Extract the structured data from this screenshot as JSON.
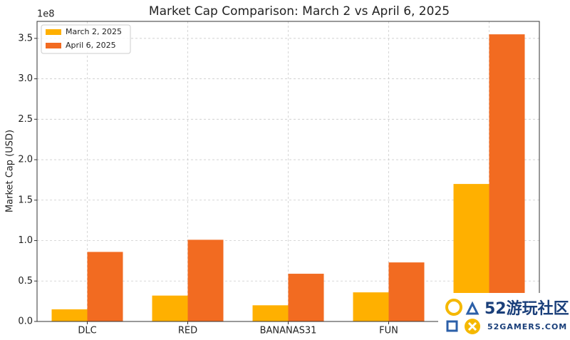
{
  "chart_data": {
    "type": "bar",
    "title": "Market Cap Comparison: March 2 vs April 6, 2025",
    "ylabel": "Market Cap (USD)",
    "offset_label": "1e8",
    "categories": [
      "DLC",
      "RED",
      "BANANAS31",
      "FUN",
      null
    ],
    "series": [
      {
        "name": "March 2, 2025",
        "color": "#ffb000",
        "values": [
          0.15,
          0.32,
          0.2,
          0.36,
          1.7
        ]
      },
      {
        "name": "April 6, 2025",
        "color": "#f26b21",
        "values": [
          0.86,
          1.01,
          0.59,
          0.73,
          3.55
        ]
      }
    ],
    "ylim": [
      0,
      3.71
    ],
    "yticks": [
      {
        "value": 0,
        "label": "0.0"
      },
      0.5,
      {
        "value": 1,
        "label": "1.0"
      },
      1.5,
      {
        "value": 2,
        "label": "2.0"
      },
      2.5,
      {
        "value": 3,
        "label": "3.0"
      },
      3.5
    ],
    "grid": true,
    "legend": "upper-left"
  },
  "watermark": {
    "brand": "52游玩社区",
    "site": "52GAMERS.COM"
  }
}
